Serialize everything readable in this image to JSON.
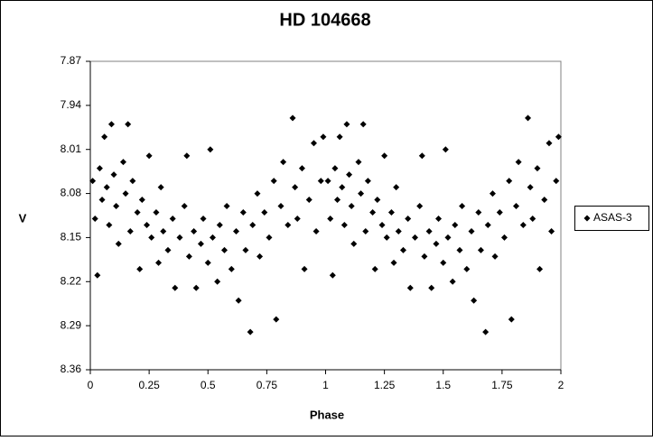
{
  "chart_data": {
    "type": "scatter",
    "title": "HD 104668",
    "xlabel": "Phase",
    "ylabel": "V",
    "xlim": [
      0,
      2
    ],
    "xticks": [
      0,
      0.25,
      0.5,
      0.75,
      1,
      1.25,
      1.5,
      1.75,
      2
    ],
    "ylim": [
      7.87,
      8.36
    ],
    "yticks": [
      7.87,
      7.94,
      8.01,
      8.08,
      8.15,
      8.22,
      8.29,
      8.36
    ],
    "y_reversed": true,
    "grid": false,
    "legend": "right",
    "series": [
      {
        "name": "ASAS-3",
        "color": "#000000",
        "x": [
          0.01,
          0.02,
          0.03,
          0.04,
          0.05,
          0.06,
          0.07,
          0.08,
          0.09,
          0.1,
          0.11,
          0.12,
          0.14,
          0.15,
          0.16,
          0.17,
          0.18,
          0.2,
          0.21,
          0.22,
          0.24,
          0.25,
          0.26,
          0.28,
          0.29,
          0.3,
          0.31,
          0.33,
          0.35,
          0.36,
          0.38,
          0.4,
          0.41,
          0.42,
          0.44,
          0.45,
          0.47,
          0.48,
          0.5,
          0.51,
          0.52,
          0.54,
          0.55,
          0.57,
          0.58,
          0.6,
          0.62,
          0.63,
          0.65,
          0.66,
          0.68,
          0.69,
          0.71,
          0.72,
          0.74,
          0.76,
          0.78,
          0.79,
          0.81,
          0.82,
          0.84,
          0.86,
          0.87,
          0.88,
          0.9,
          0.91,
          0.93,
          0.95,
          0.96,
          0.98,
          0.99,
          1.01,
          1.02,
          1.03,
          1.04,
          1.05,
          1.06,
          1.07,
          1.08,
          1.09,
          1.1,
          1.11,
          1.12,
          1.14,
          1.15,
          1.16,
          1.17,
          1.18,
          1.2,
          1.21,
          1.22,
          1.24,
          1.25,
          1.26,
          1.28,
          1.29,
          1.3,
          1.31,
          1.33,
          1.35,
          1.36,
          1.38,
          1.4,
          1.41,
          1.42,
          1.44,
          1.45,
          1.47,
          1.48,
          1.5,
          1.51,
          1.52,
          1.54,
          1.55,
          1.57,
          1.58,
          1.6,
          1.62,
          1.63,
          1.65,
          1.66,
          1.68,
          1.69,
          1.71,
          1.72,
          1.74,
          1.76,
          1.78,
          1.79,
          1.81,
          1.82,
          1.84,
          1.86,
          1.87,
          1.88,
          1.9,
          1.91,
          1.93,
          1.95,
          1.96,
          1.98,
          1.99
        ],
        "values": [
          8.06,
          8.12,
          8.21,
          8.04,
          8.09,
          7.99,
          8.07,
          8.13,
          7.97,
          8.05,
          8.1,
          8.16,
          8.03,
          8.08,
          7.97,
          8.14,
          8.06,
          8.11,
          8.2,
          8.09,
          8.13,
          8.02,
          8.15,
          8.11,
          8.19,
          8.07,
          8.14,
          8.17,
          8.12,
          8.23,
          8.15,
          8.1,
          8.02,
          8.18,
          8.14,
          8.23,
          8.16,
          8.12,
          8.19,
          8.01,
          8.15,
          8.22,
          8.13,
          8.17,
          8.1,
          8.2,
          8.14,
          8.25,
          8.11,
          8.17,
          8.3,
          8.13,
          8.08,
          8.18,
          8.11,
          8.15,
          8.06,
          8.28,
          8.1,
          8.03,
          8.13,
          7.96,
          8.07,
          8.12,
          8.04,
          8.2,
          8.09,
          8.0,
          8.14,
          8.06,
          7.99,
          8.06,
          8.12,
          8.21,
          8.04,
          8.09,
          7.99,
          8.07,
          8.13,
          7.97,
          8.05,
          8.1,
          8.16,
          8.03,
          8.08,
          7.97,
          8.14,
          8.06,
          8.11,
          8.2,
          8.09,
          8.13,
          8.02,
          8.15,
          8.11,
          8.19,
          8.07,
          8.14,
          8.17,
          8.12,
          8.23,
          8.15,
          8.1,
          8.02,
          8.18,
          8.14,
          8.23,
          8.16,
          8.12,
          8.19,
          8.01,
          8.15,
          8.22,
          8.13,
          8.17,
          8.1,
          8.2,
          8.14,
          8.25,
          8.11,
          8.17,
          8.3,
          8.13,
          8.08,
          8.18,
          8.11,
          8.15,
          8.06,
          8.28,
          8.1,
          8.03,
          8.13,
          7.96,
          8.07,
          8.12,
          8.04,
          8.2,
          8.09,
          8.0,
          8.14,
          8.06,
          7.99
        ]
      }
    ]
  }
}
